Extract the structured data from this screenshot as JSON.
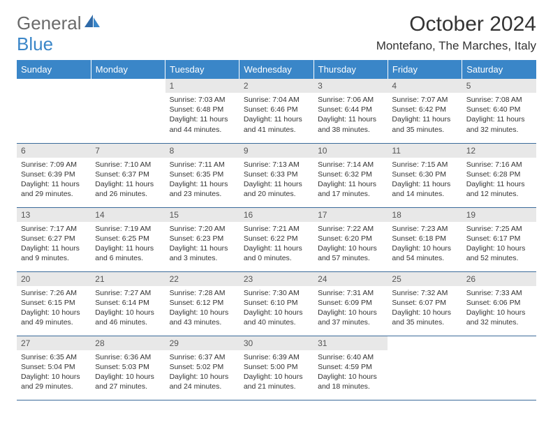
{
  "logo": {
    "text1": "General",
    "text2": "Blue"
  },
  "title": "October 2024",
  "location": "Montefano, The Marches, Italy",
  "colors": {
    "header_bg": "#3a86c8",
    "header_text": "#ffffff",
    "day_num_bg": "#e8e8e8",
    "border": "#3a6a9a",
    "text": "#333333",
    "logo_gray": "#6a6a6a",
    "logo_blue": "#3a86c8",
    "page_bg": "#ffffff"
  },
  "weekdays": [
    "Sunday",
    "Monday",
    "Tuesday",
    "Wednesday",
    "Thursday",
    "Friday",
    "Saturday"
  ],
  "weeks": [
    [
      null,
      null,
      {
        "n": "1",
        "sr": "7:03 AM",
        "ss": "6:48 PM",
        "dl": "11 hours and 44 minutes."
      },
      {
        "n": "2",
        "sr": "7:04 AM",
        "ss": "6:46 PM",
        "dl": "11 hours and 41 minutes."
      },
      {
        "n": "3",
        "sr": "7:06 AM",
        "ss": "6:44 PM",
        "dl": "11 hours and 38 minutes."
      },
      {
        "n": "4",
        "sr": "7:07 AM",
        "ss": "6:42 PM",
        "dl": "11 hours and 35 minutes."
      },
      {
        "n": "5",
        "sr": "7:08 AM",
        "ss": "6:40 PM",
        "dl": "11 hours and 32 minutes."
      }
    ],
    [
      {
        "n": "6",
        "sr": "7:09 AM",
        "ss": "6:39 PM",
        "dl": "11 hours and 29 minutes."
      },
      {
        "n": "7",
        "sr": "7:10 AM",
        "ss": "6:37 PM",
        "dl": "11 hours and 26 minutes."
      },
      {
        "n": "8",
        "sr": "7:11 AM",
        "ss": "6:35 PM",
        "dl": "11 hours and 23 minutes."
      },
      {
        "n": "9",
        "sr": "7:13 AM",
        "ss": "6:33 PM",
        "dl": "11 hours and 20 minutes."
      },
      {
        "n": "10",
        "sr": "7:14 AM",
        "ss": "6:32 PM",
        "dl": "11 hours and 17 minutes."
      },
      {
        "n": "11",
        "sr": "7:15 AM",
        "ss": "6:30 PM",
        "dl": "11 hours and 14 minutes."
      },
      {
        "n": "12",
        "sr": "7:16 AM",
        "ss": "6:28 PM",
        "dl": "11 hours and 12 minutes."
      }
    ],
    [
      {
        "n": "13",
        "sr": "7:17 AM",
        "ss": "6:27 PM",
        "dl": "11 hours and 9 minutes."
      },
      {
        "n": "14",
        "sr": "7:19 AM",
        "ss": "6:25 PM",
        "dl": "11 hours and 6 minutes."
      },
      {
        "n": "15",
        "sr": "7:20 AM",
        "ss": "6:23 PM",
        "dl": "11 hours and 3 minutes."
      },
      {
        "n": "16",
        "sr": "7:21 AM",
        "ss": "6:22 PM",
        "dl": "11 hours and 0 minutes."
      },
      {
        "n": "17",
        "sr": "7:22 AM",
        "ss": "6:20 PM",
        "dl": "10 hours and 57 minutes."
      },
      {
        "n": "18",
        "sr": "7:23 AM",
        "ss": "6:18 PM",
        "dl": "10 hours and 54 minutes."
      },
      {
        "n": "19",
        "sr": "7:25 AM",
        "ss": "6:17 PM",
        "dl": "10 hours and 52 minutes."
      }
    ],
    [
      {
        "n": "20",
        "sr": "7:26 AM",
        "ss": "6:15 PM",
        "dl": "10 hours and 49 minutes."
      },
      {
        "n": "21",
        "sr": "7:27 AM",
        "ss": "6:14 PM",
        "dl": "10 hours and 46 minutes."
      },
      {
        "n": "22",
        "sr": "7:28 AM",
        "ss": "6:12 PM",
        "dl": "10 hours and 43 minutes."
      },
      {
        "n": "23",
        "sr": "7:30 AM",
        "ss": "6:10 PM",
        "dl": "10 hours and 40 minutes."
      },
      {
        "n": "24",
        "sr": "7:31 AM",
        "ss": "6:09 PM",
        "dl": "10 hours and 37 minutes."
      },
      {
        "n": "25",
        "sr": "7:32 AM",
        "ss": "6:07 PM",
        "dl": "10 hours and 35 minutes."
      },
      {
        "n": "26",
        "sr": "7:33 AM",
        "ss": "6:06 PM",
        "dl": "10 hours and 32 minutes."
      }
    ],
    [
      {
        "n": "27",
        "sr": "6:35 AM",
        "ss": "5:04 PM",
        "dl": "10 hours and 29 minutes."
      },
      {
        "n": "28",
        "sr": "6:36 AM",
        "ss": "5:03 PM",
        "dl": "10 hours and 27 minutes."
      },
      {
        "n": "29",
        "sr": "6:37 AM",
        "ss": "5:02 PM",
        "dl": "10 hours and 24 minutes."
      },
      {
        "n": "30",
        "sr": "6:39 AM",
        "ss": "5:00 PM",
        "dl": "10 hours and 21 minutes."
      },
      {
        "n": "31",
        "sr": "6:40 AM",
        "ss": "4:59 PM",
        "dl": "10 hours and 18 minutes."
      },
      null,
      null
    ]
  ],
  "labels": {
    "sunrise": "Sunrise: ",
    "sunset": "Sunset: ",
    "daylight": "Daylight: "
  }
}
